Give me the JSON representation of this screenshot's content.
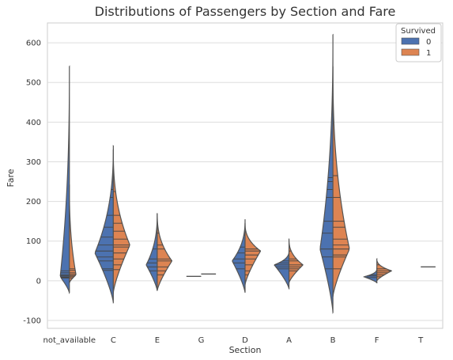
{
  "chart_data": {
    "type": "violin",
    "title": "Distributions of Passengers by Section and Fare",
    "xlabel": "Section",
    "ylabel": "Fare",
    "ylim": [
      -120,
      650
    ],
    "yticks": [
      -100,
      0,
      100,
      200,
      300,
      400,
      500,
      600
    ],
    "grid": true,
    "split": true,
    "inner": "stick",
    "categories": [
      "not_available",
      "C",
      "E",
      "G",
      "D",
      "A",
      "B",
      "F",
      "T"
    ],
    "legend": {
      "title": "Survived",
      "placement": "top-right",
      "entries": [
        {
          "label": "0",
          "color": "#4c72b0"
        },
        {
          "label": "1",
          "color": "#dd8452"
        }
      ]
    },
    "series": [
      {
        "name": "0",
        "color": "#4c72b0",
        "violins": [
          {
            "category": "not_available",
            "min": -30,
            "max": 540,
            "mode": 10,
            "width": 0.25,
            "values": [
              7,
              8,
              8,
              9,
              10,
              13,
              15,
              20,
              25
            ]
          },
          {
            "category": "C",
            "min": -55,
            "max": 340,
            "mode": 70,
            "width": 0.5,
            "values": [
              26,
              30,
              50,
              60,
              75,
              90,
              110,
              135,
              165,
              210,
              230
            ]
          },
          {
            "category": "E",
            "min": -25,
            "max": 170,
            "mode": 40,
            "width": 0.3,
            "values": [
              25,
              35,
              45,
              55,
              80
            ]
          },
          {
            "category": "G",
            "min": 10,
            "max": 12,
            "mode": 11,
            "width": 0.4,
            "values": [
              11
            ]
          },
          {
            "category": "D",
            "min": -30,
            "max": 155,
            "mode": 50,
            "width": 0.35,
            "values": [
              30,
              45,
              55,
              70,
              85,
              115
            ]
          },
          {
            "category": "A",
            "min": -20,
            "max": 75,
            "mode": 40,
            "width": 0.4,
            "values": [
              30,
              35,
              40,
              45,
              50
            ]
          },
          {
            "category": "B",
            "min": -80,
            "max": 620,
            "mode": 80,
            "width": 0.35,
            "values": [
              30,
              60,
              80,
              120,
              150,
              210,
              230,
              250,
              260
            ]
          },
          {
            "category": "F",
            "min": -5,
            "max": 30,
            "mode": 10,
            "width": 0.35,
            "values": [
              8,
              12,
              15
            ]
          },
          {
            "category": "T",
            "min": 35,
            "max": 35,
            "mode": 35,
            "width": 0.0,
            "values": []
          }
        ]
      },
      {
        "name": "1",
        "color": "#dd8452",
        "violins": [
          {
            "category": "not_available",
            "min": -5,
            "max": 240,
            "mode": 15,
            "width": 0.18,
            "values": [
              7,
              10,
              13,
              16,
              20,
              26,
              30
            ]
          },
          {
            "category": "C",
            "min": -30,
            "max": 330,
            "mode": 90,
            "width": 0.45,
            "values": [
              28,
              40,
              55,
              70,
              85,
              90,
              105,
              125,
              145,
              165,
              225
            ]
          },
          {
            "category": "E",
            "min": -25,
            "max": 170,
            "mode": 50,
            "width": 0.4,
            "values": [
              15,
              25,
              35,
              50,
              55,
              80,
              90,
              120
            ]
          },
          {
            "category": "G",
            "min": 16,
            "max": 18,
            "mode": 17,
            "width": 0.4,
            "values": [
              17
            ]
          },
          {
            "category": "D",
            "min": -10,
            "max": 145,
            "mode": 75,
            "width": 0.42,
            "values": [
              15,
              25,
              40,
              55,
              65,
              75,
              80
            ]
          },
          {
            "category": "A",
            "min": -5,
            "max": 105,
            "mode": 40,
            "width": 0.38,
            "values": [
              25,
              30,
              35,
              40,
              50,
              55,
              75
            ]
          },
          {
            "category": "B",
            "min": -40,
            "max": 540,
            "mode": 80,
            "width": 0.45,
            "values": [
              30,
              60,
              65,
              80,
              90,
              105,
              135,
              150,
              210,
              265
            ]
          },
          {
            "category": "F",
            "min": 0,
            "max": 55,
            "mode": 25,
            "width": 0.4,
            "values": [
              10,
              15,
              20,
              25,
              30,
              40
            ]
          },
          {
            "category": "T",
            "min": 35,
            "max": 35,
            "mode": 35,
            "width": 0.4,
            "values": [
              35
            ]
          }
        ]
      }
    ]
  }
}
